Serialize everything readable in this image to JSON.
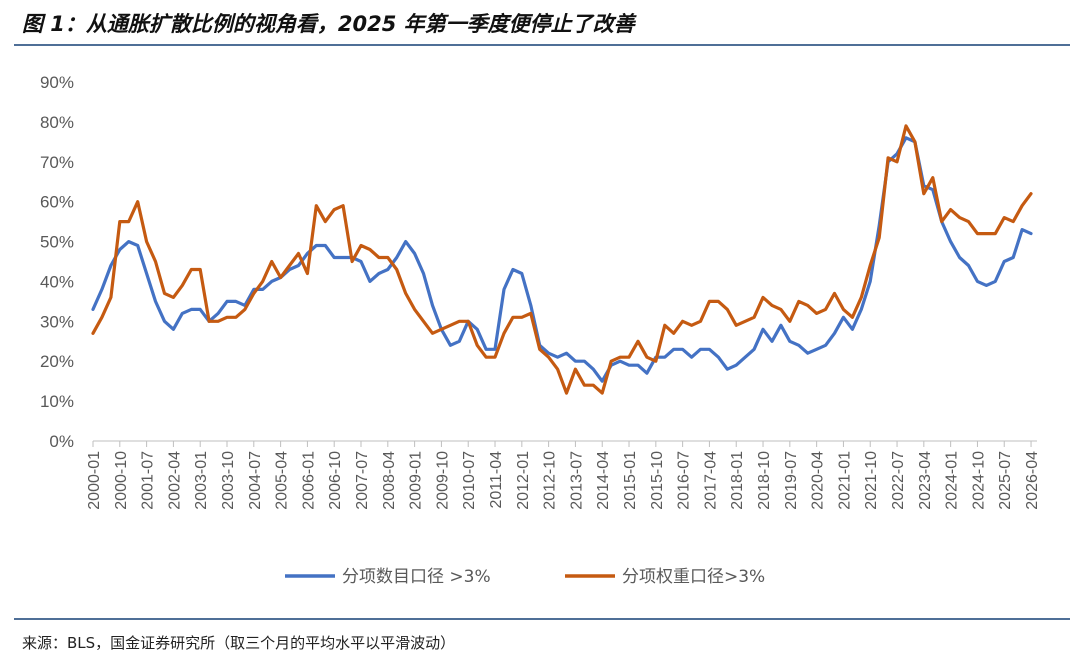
{
  "title": "图 1：从通胀扩散比例的视角看，2025 年第一季度便停止了改善",
  "source": "来源：BLS，国金证券研究所（取三个月的平均水平以平滑波动）",
  "colors": {
    "series_1": "#4472c4",
    "series_2": "#c55a11",
    "axis": "#bfbfbf",
    "text": "#595959",
    "rule": "#4f6f97"
  },
  "chart_data": {
    "type": "line",
    "ylim": [
      0,
      90
    ],
    "y_ticks": [
      "0%",
      "10%",
      "20%",
      "30%",
      "40%",
      "50%",
      "60%",
      "70%",
      "80%",
      "90%"
    ],
    "x_ticks": [
      "2000-01",
      "2000-10",
      "2001-07",
      "2002-04",
      "2003-01",
      "2003-10",
      "2004-07",
      "2005-04",
      "2006-01",
      "2006-10",
      "2007-07",
      "2008-04",
      "2009-01",
      "2009-10",
      "2010-07",
      "2011-04",
      "2012-01",
      "2012-10",
      "2013-07",
      "2014-04",
      "2015-01",
      "2015-10",
      "2016-07",
      "2017-04",
      "2018-01",
      "2018-10",
      "2019-07",
      "2020-04",
      "2021-01",
      "2021-10",
      "2022-07",
      "2023-04",
      "2024-01",
      "2024-10",
      "2025-07",
      "2026-04"
    ],
    "grid": false,
    "legend_position": "bottom",
    "series": [
      {
        "name": "分项数目口径 >3%",
        "color": "#4472c4",
        "points": [
          [
            "2000-01",
            33
          ],
          [
            "2000-04",
            38
          ],
          [
            "2000-07",
            44
          ],
          [
            "2000-10",
            48
          ],
          [
            "2001-01",
            50
          ],
          [
            "2001-04",
            49
          ],
          [
            "2001-07",
            42
          ],
          [
            "2001-10",
            35
          ],
          [
            "2002-01",
            30
          ],
          [
            "2002-04",
            28
          ],
          [
            "2002-07",
            32
          ],
          [
            "2002-10",
            33
          ],
          [
            "2003-01",
            33
          ],
          [
            "2003-04",
            30
          ],
          [
            "2003-07",
            32
          ],
          [
            "2003-10",
            35
          ],
          [
            "2004-01",
            35
          ],
          [
            "2004-04",
            34
          ],
          [
            "2004-07",
            38
          ],
          [
            "2004-10",
            38
          ],
          [
            "2005-01",
            40
          ],
          [
            "2005-04",
            41
          ],
          [
            "2005-07",
            43
          ],
          [
            "2005-10",
            44
          ],
          [
            "2006-01",
            47
          ],
          [
            "2006-04",
            49
          ],
          [
            "2006-07",
            49
          ],
          [
            "2006-10",
            46
          ],
          [
            "2007-01",
            46
          ],
          [
            "2007-04",
            46
          ],
          [
            "2007-07",
            45
          ],
          [
            "2007-10",
            40
          ],
          [
            "2008-01",
            42
          ],
          [
            "2008-04",
            43
          ],
          [
            "2008-07",
            46
          ],
          [
            "2008-10",
            50
          ],
          [
            "2009-01",
            47
          ],
          [
            "2009-04",
            42
          ],
          [
            "2009-07",
            34
          ],
          [
            "2009-10",
            28
          ],
          [
            "2010-01",
            24
          ],
          [
            "2010-04",
            25
          ],
          [
            "2010-07",
            30
          ],
          [
            "2010-10",
            28
          ],
          [
            "2011-01",
            23
          ],
          [
            "2011-04",
            23
          ],
          [
            "2011-07",
            38
          ],
          [
            "2011-10",
            43
          ],
          [
            "2012-01",
            42
          ],
          [
            "2012-04",
            34
          ],
          [
            "2012-07",
            24
          ],
          [
            "2012-10",
            22
          ],
          [
            "2013-01",
            21
          ],
          [
            "2013-04",
            22
          ],
          [
            "2013-07",
            20
          ],
          [
            "2013-10",
            20
          ],
          [
            "2014-01",
            18
          ],
          [
            "2014-04",
            15
          ],
          [
            "2014-07",
            19
          ],
          [
            "2014-10",
            20
          ],
          [
            "2015-01",
            19
          ],
          [
            "2015-04",
            19
          ],
          [
            "2015-07",
            17
          ],
          [
            "2015-10",
            21
          ],
          [
            "2016-01",
            21
          ],
          [
            "2016-04",
            23
          ],
          [
            "2016-07",
            23
          ],
          [
            "2016-10",
            21
          ],
          [
            "2017-01",
            23
          ],
          [
            "2017-04",
            23
          ],
          [
            "2017-07",
            21
          ],
          [
            "2017-10",
            18
          ],
          [
            "2018-01",
            19
          ],
          [
            "2018-04",
            21
          ],
          [
            "2018-07",
            23
          ],
          [
            "2018-10",
            28
          ],
          [
            "2019-01",
            25
          ],
          [
            "2019-04",
            29
          ],
          [
            "2019-07",
            25
          ],
          [
            "2019-10",
            24
          ],
          [
            "2020-01",
            22
          ],
          [
            "2020-04",
            23
          ],
          [
            "2020-07",
            24
          ],
          [
            "2020-10",
            27
          ],
          [
            "2021-01",
            31
          ],
          [
            "2021-04",
            28
          ],
          [
            "2021-07",
            33
          ],
          [
            "2021-10",
            40
          ],
          [
            "2022-01",
            54
          ],
          [
            "2022-04",
            70
          ],
          [
            "2022-07",
            72
          ],
          [
            "2022-10",
            76
          ],
          [
            "2023-01",
            75
          ],
          [
            "2023-04",
            64
          ],
          [
            "2023-07",
            63
          ],
          [
            "2023-10",
            55
          ],
          [
            "2024-01",
            50
          ],
          [
            "2024-04",
            46
          ],
          [
            "2024-07",
            44
          ],
          [
            "2024-10",
            40
          ],
          [
            "2025-01",
            39
          ],
          [
            "2025-04",
            40
          ],
          [
            "2025-07",
            45
          ],
          [
            "2025-10",
            46
          ],
          [
            "2026-01",
            53
          ],
          [
            "2026-04",
            52
          ]
        ]
      },
      {
        "name": "分项权重口径>3%",
        "color": "#c55a11",
        "points": [
          [
            "2000-01",
            27
          ],
          [
            "2000-04",
            31
          ],
          [
            "2000-07",
            36
          ],
          [
            "2000-10",
            55
          ],
          [
            "2001-01",
            55
          ],
          [
            "2001-04",
            60
          ],
          [
            "2001-07",
            50
          ],
          [
            "2001-10",
            45
          ],
          [
            "2002-01",
            37
          ],
          [
            "2002-04",
            36
          ],
          [
            "2002-07",
            39
          ],
          [
            "2002-10",
            43
          ],
          [
            "2003-01",
            43
          ],
          [
            "2003-04",
            30
          ],
          [
            "2003-07",
            30
          ],
          [
            "2003-10",
            31
          ],
          [
            "2004-01",
            31
          ],
          [
            "2004-04",
            33
          ],
          [
            "2004-07",
            37
          ],
          [
            "2004-10",
            40
          ],
          [
            "2005-01",
            45
          ],
          [
            "2005-04",
            41
          ],
          [
            "2005-07",
            44
          ],
          [
            "2005-10",
            47
          ],
          [
            "2006-01",
            42
          ],
          [
            "2006-04",
            59
          ],
          [
            "2006-07",
            55
          ],
          [
            "2006-10",
            58
          ],
          [
            "2007-01",
            59
          ],
          [
            "2007-04",
            45
          ],
          [
            "2007-07",
            49
          ],
          [
            "2007-10",
            48
          ],
          [
            "2008-01",
            46
          ],
          [
            "2008-04",
            46
          ],
          [
            "2008-07",
            43
          ],
          [
            "2008-10",
            37
          ],
          [
            "2009-01",
            33
          ],
          [
            "2009-04",
            30
          ],
          [
            "2009-07",
            27
          ],
          [
            "2009-10",
            28
          ],
          [
            "2010-01",
            29
          ],
          [
            "2010-04",
            30
          ],
          [
            "2010-07",
            30
          ],
          [
            "2010-10",
            24
          ],
          [
            "2011-01",
            21
          ],
          [
            "2011-04",
            21
          ],
          [
            "2011-07",
            27
          ],
          [
            "2011-10",
            31
          ],
          [
            "2012-01",
            31
          ],
          [
            "2012-04",
            32
          ],
          [
            "2012-07",
            23
          ],
          [
            "2012-10",
            21
          ],
          [
            "2013-01",
            18
          ],
          [
            "2013-04",
            12
          ],
          [
            "2013-07",
            18
          ],
          [
            "2013-10",
            14
          ],
          [
            "2014-01",
            14
          ],
          [
            "2014-04",
            12
          ],
          [
            "2014-07",
            20
          ],
          [
            "2014-10",
            21
          ],
          [
            "2015-01",
            21
          ],
          [
            "2015-04",
            25
          ],
          [
            "2015-07",
            21
          ],
          [
            "2015-10",
            20
          ],
          [
            "2016-01",
            29
          ],
          [
            "2016-04",
            27
          ],
          [
            "2016-07",
            30
          ],
          [
            "2016-10",
            29
          ],
          [
            "2017-01",
            30
          ],
          [
            "2017-04",
            35
          ],
          [
            "2017-07",
            35
          ],
          [
            "2017-10",
            33
          ],
          [
            "2018-01",
            29
          ],
          [
            "2018-04",
            30
          ],
          [
            "2018-07",
            31
          ],
          [
            "2018-10",
            36
          ],
          [
            "2019-01",
            34
          ],
          [
            "2019-04",
            33
          ],
          [
            "2019-07",
            30
          ],
          [
            "2019-10",
            35
          ],
          [
            "2020-01",
            34
          ],
          [
            "2020-04",
            32
          ],
          [
            "2020-07",
            33
          ],
          [
            "2020-10",
            37
          ],
          [
            "2021-01",
            33
          ],
          [
            "2021-04",
            31
          ],
          [
            "2021-07",
            36
          ],
          [
            "2021-10",
            44
          ],
          [
            "2022-01",
            51
          ],
          [
            "2022-04",
            71
          ],
          [
            "2022-07",
            70
          ],
          [
            "2022-10",
            79
          ],
          [
            "2023-01",
            75
          ],
          [
            "2023-04",
            62
          ],
          [
            "2023-07",
            66
          ],
          [
            "2023-10",
            55
          ],
          [
            "2024-01",
            58
          ],
          [
            "2024-04",
            56
          ],
          [
            "2024-07",
            55
          ],
          [
            "2024-10",
            52
          ],
          [
            "2025-01",
            52
          ],
          [
            "2025-04",
            52
          ],
          [
            "2025-07",
            56
          ],
          [
            "2025-10",
            55
          ],
          [
            "2026-01",
            59
          ],
          [
            "2026-04",
            62
          ]
        ]
      }
    ]
  }
}
